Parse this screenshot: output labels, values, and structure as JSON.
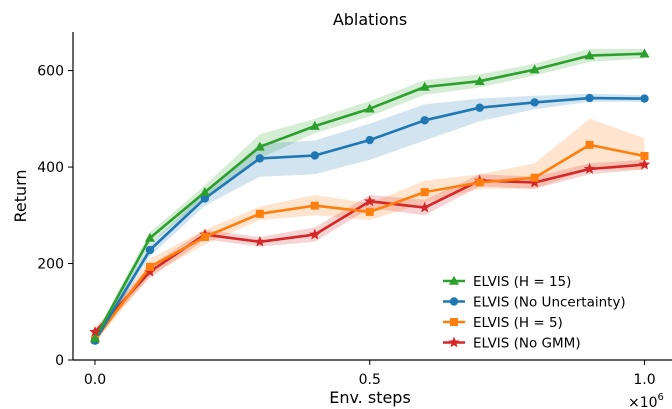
{
  "chart_data": {
    "type": "line",
    "title": "Ablations",
    "xlabel": "Env. steps",
    "ylabel": "Return",
    "x_scale_label": "×10",
    "x_scale_exponent": "6",
    "xlim": [
      -0.04,
      1.05
    ],
    "ylim": [
      0,
      680
    ],
    "xticks": [
      0.0,
      0.5,
      1.0
    ],
    "xtick_labels": [
      "0.0",
      "0.5",
      "1.0"
    ],
    "yticks": [
      0,
      200,
      400,
      600
    ],
    "ytick_labels": [
      "0",
      "200",
      "400",
      "600"
    ],
    "grid": false,
    "legend_position": "bottom-right",
    "x": [
      0.0,
      0.1,
      0.2,
      0.3,
      0.4,
      0.5,
      0.6,
      0.7,
      0.8,
      0.9,
      1.0
    ],
    "series": [
      {
        "name": "ELVIS (H = 15)",
        "color": "#2ca02c",
        "marker": "triangle",
        "values": [
          45,
          253,
          348,
          442,
          485,
          521,
          566,
          578,
          602,
          631,
          635
        ],
        "lower": [
          38,
          240,
          335,
          418,
          470,
          505,
          550,
          565,
          590,
          618,
          625
        ],
        "upper": [
          52,
          265,
          362,
          468,
          500,
          537,
          580,
          592,
          614,
          645,
          645
        ]
      },
      {
        "name": "ELVIS (No Uncertainty)",
        "color": "#1f77b4",
        "marker": "circle",
        "values": [
          40,
          228,
          335,
          418,
          424,
          456,
          497,
          523,
          534,
          543,
          542
        ],
        "lower": [
          33,
          215,
          320,
          380,
          385,
          415,
          455,
          495,
          520,
          535,
          535
        ],
        "upper": [
          47,
          240,
          348,
          448,
          455,
          490,
          530,
          542,
          548,
          552,
          549
        ]
      },
      {
        "name": "ELVIS (H = 5)",
        "color": "#ff7f0e",
        "marker": "square",
        "values": [
          42,
          193,
          255,
          303,
          320,
          307,
          348,
          368,
          378,
          446,
          423
        ],
        "lower": [
          35,
          175,
          240,
          290,
          300,
          290,
          325,
          355,
          355,
          395,
          395
        ],
        "upper": [
          50,
          210,
          270,
          318,
          342,
          325,
          372,
          385,
          408,
          500,
          460
        ]
      },
      {
        "name": "ELVIS (No GMM)",
        "color": "#d62728",
        "marker": "star",
        "values": [
          58,
          183,
          260,
          245,
          260,
          329,
          316,
          372,
          368,
          396,
          405
        ],
        "lower": [
          50,
          170,
          250,
          235,
          245,
          315,
          300,
          360,
          355,
          385,
          395
        ],
        "upper": [
          66,
          195,
          270,
          255,
          275,
          342,
          332,
          385,
          380,
          408,
          415
        ]
      }
    ]
  }
}
